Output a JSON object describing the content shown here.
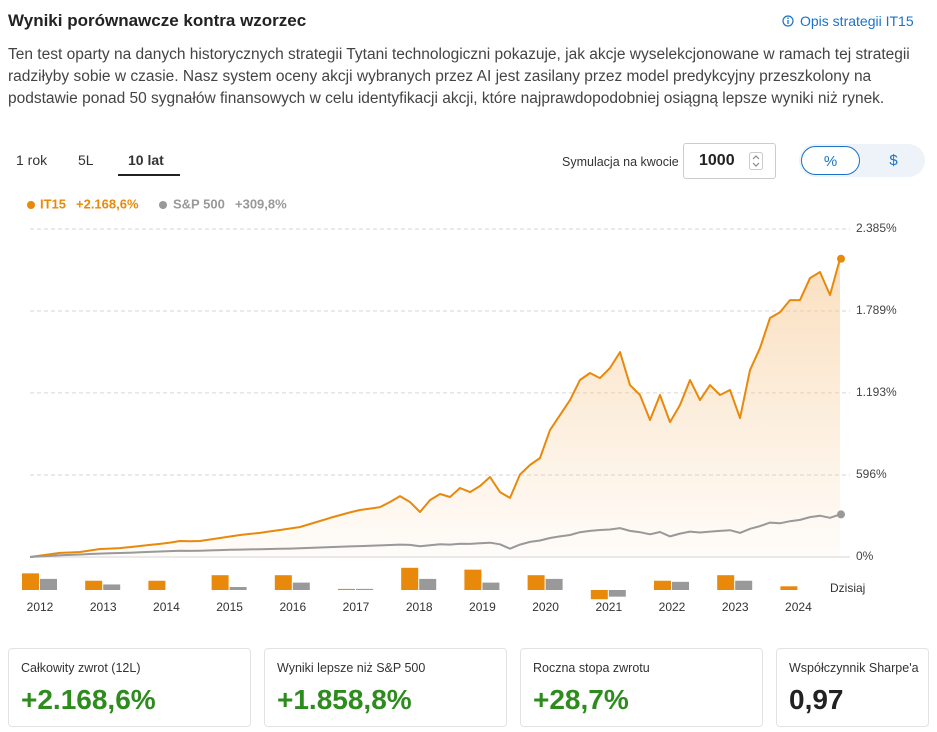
{
  "header": {
    "title": "Wyniki porównawcze kontra wzorzec",
    "link": "Opis strategii IT15"
  },
  "description": "Ten test oparty na danych historycznych strategii Tytani technologiczni pokazuje, jak akcje wyselekcjonowane w ramach tej strategii radziłyby sobie w czasie. Nasz system oceny akcji wybranych przez AI jest zasilany przez model predykcyjny przeszkolony na podstawie ponad 50 sygnałów finansowych w celu identyfikacji akcji, które najprawdopodobniej osiągną lepsze wyniki niż rynek.",
  "tabs": {
    "items": [
      "1 rok",
      "5L",
      "10 lat"
    ],
    "active": 2
  },
  "simulation": {
    "label": "Symulacja na kwocie",
    "amount": 1000
  },
  "toggle": {
    "items": [
      "%",
      "$"
    ],
    "active": 0
  },
  "chart_data": {
    "type": "line",
    "ylim": [
      0,
      2385
    ],
    "yticks": [
      {
        "value": 0,
        "label": "0%"
      },
      {
        "value": 596,
        "label": "596%"
      },
      {
        "value": 1193,
        "label": "1.193%"
      },
      {
        "value": 1789,
        "label": "1.789%"
      },
      {
        "value": 2385,
        "label": "2.385%"
      }
    ],
    "grid": true,
    "series": [
      {
        "name": "IT15",
        "total_label": "+2.168,6%",
        "color": "#e8890c",
        "values": [
          0,
          10,
          20,
          30,
          33,
          36,
          47,
          58,
          61,
          65,
          72,
          80,
          88,
          95,
          105,
          116,
          114,
          116,
          127,
          138,
          149,
          160,
          168,
          175,
          186,
          196,
          207,
          218,
          240,
          262,
          284,
          305,
          324,
          342,
          352,
          363,
          400,
          443,
          400,
          327,
          414,
          458,
          436,
          502,
          472,
          516,
          582,
          472,
          430,
          600,
          669,
          720,
          923,
          1032,
          1141,
          1287,
          1338,
          1301,
          1374,
          1490,
          1250,
          1178,
          996,
          1178,
          981,
          1105,
          1287,
          1141,
          1250,
          1178,
          1214,
          1010,
          1359,
          1519,
          1738,
          1780,
          1868,
          1868,
          2028,
          2072,
          1905,
          2168.6
        ]
      },
      {
        "name": "S&P 500",
        "total_label": "+309,8%",
        "color": "#999999",
        "values": [
          0,
          4,
          8,
          12,
          15,
          18,
          22,
          25,
          27,
          29,
          31,
          34,
          37,
          40,
          43,
          45,
          44,
          46,
          48,
          50,
          52,
          54,
          55,
          57,
          58,
          60,
          61,
          63,
          66,
          69,
          72,
          75,
          77,
          79,
          82,
          84,
          87,
          90,
          88,
          78,
          86,
          92,
          90,
          96,
          95,
          100,
          104,
          92,
          60,
          90,
          110,
          120,
          138,
          150,
          160,
          180,
          190,
          196,
          200,
          210,
          190,
          180,
          165,
          182,
          150,
          170,
          185,
          178,
          185,
          190,
          195,
          175,
          205,
          225,
          250,
          245,
          260,
          270,
          290,
          300,
          285,
          309.8
        ]
      }
    ],
    "annual": {
      "type": "bar",
      "categories": [
        "2012",
        "2013",
        "2014",
        "2015",
        "2016",
        "2017",
        "2018",
        "2019",
        "2020",
        "2021",
        "2022",
        "2023",
        "2024"
      ],
      "series": [
        {
          "name": "IT15",
          "color": "#e8890c",
          "values": [
            45,
            25,
            25,
            40,
            40,
            3,
            60,
            55,
            40,
            -25,
            25,
            40,
            10
          ]
        },
        {
          "name": "S&P 500",
          "color": "#999999",
          "values": [
            30,
            15,
            null,
            8,
            20,
            3,
            30,
            20,
            30,
            -18,
            22,
            25,
            null
          ]
        }
      ],
      "today_label": "Dzisiaj"
    }
  },
  "stats": [
    {
      "label": "Całkowity zwrot (12L)",
      "value": "+2.168,6%",
      "color": "#2e8b1e"
    },
    {
      "label": "Wyniki lepsze niż S&P 500",
      "value": "+1.858,8%",
      "color": "#2e8b1e"
    },
    {
      "label": "Roczna stopa zwrotu",
      "value": "+28,7%",
      "color": "#2e8b1e"
    },
    {
      "label": "Współczynnik Sharpe'a",
      "value": "0,97",
      "color": "#222222"
    }
  ]
}
